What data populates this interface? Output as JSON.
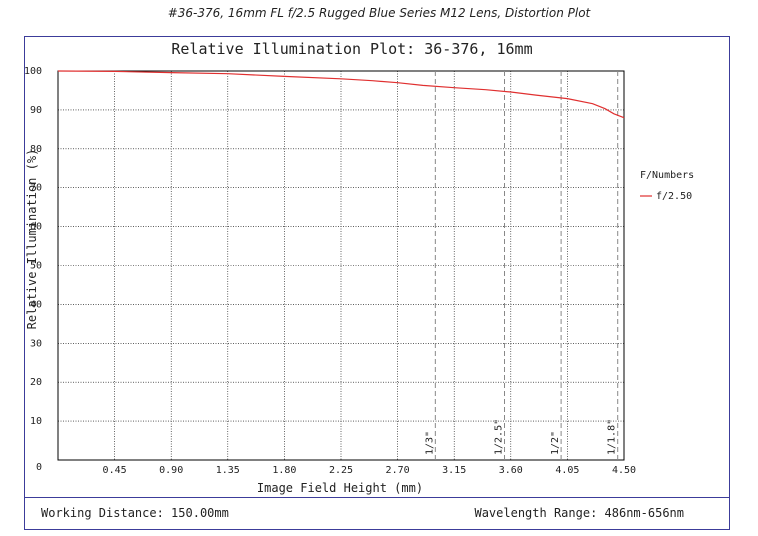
{
  "caption": "#36-376, 16mm FL f/2.5 Rugged Blue Series M12 Lens, Distortion Plot",
  "footer": {
    "working_distance": "Working Distance: 150.00mm",
    "wavelength_range": "Wavelength Range: 486nm-656nm"
  },
  "colors": {
    "series": "#e03030",
    "frame": "#3c3c9a",
    "grid": "#000000",
    "sensor_lines": "#888888"
  },
  "chart_data": {
    "type": "line",
    "title": "Relative Illumination Plot: 36-376, 16mm",
    "xlabel": "Image Field Height (mm)",
    "ylabel": "Relative Illumination (%)",
    "xlim": [
      0,
      4.5
    ],
    "ylim": [
      0,
      100
    ],
    "x_ticks": [
      "0.45",
      "0.90",
      "1.35",
      "1.80",
      "2.25",
      "2.70",
      "3.15",
      "3.60",
      "4.05",
      "4.50"
    ],
    "y_ticks": [
      "0",
      "10",
      "20",
      "30",
      "40",
      "50",
      "60",
      "70",
      "80",
      "90",
      "100"
    ],
    "grid": true,
    "legend_title": "F/Numbers",
    "legend_position": "right",
    "series": [
      {
        "name": "f/2.50",
        "x": [
          0,
          0.45,
          0.9,
          1.35,
          1.8,
          2.25,
          2.5,
          2.7,
          2.9,
          3.15,
          3.4,
          3.6,
          3.8,
          4.05,
          4.25,
          4.35,
          4.42,
          4.5
        ],
        "y": [
          100,
          99.9,
          99.6,
          99.3,
          98.6,
          98.0,
          97.5,
          97.0,
          96.3,
          95.7,
          95.2,
          94.6,
          93.8,
          92.9,
          91.6,
          90.3,
          89.0,
          88.0
        ]
      }
    ],
    "sensor_markers": [
      {
        "label": "1/3\"",
        "x": 3.0
      },
      {
        "label": "1/2.5\"",
        "x": 3.55
      },
      {
        "label": "1/2\"",
        "x": 4.0
      },
      {
        "label": "1/1.8\"",
        "x": 4.45
      }
    ]
  }
}
